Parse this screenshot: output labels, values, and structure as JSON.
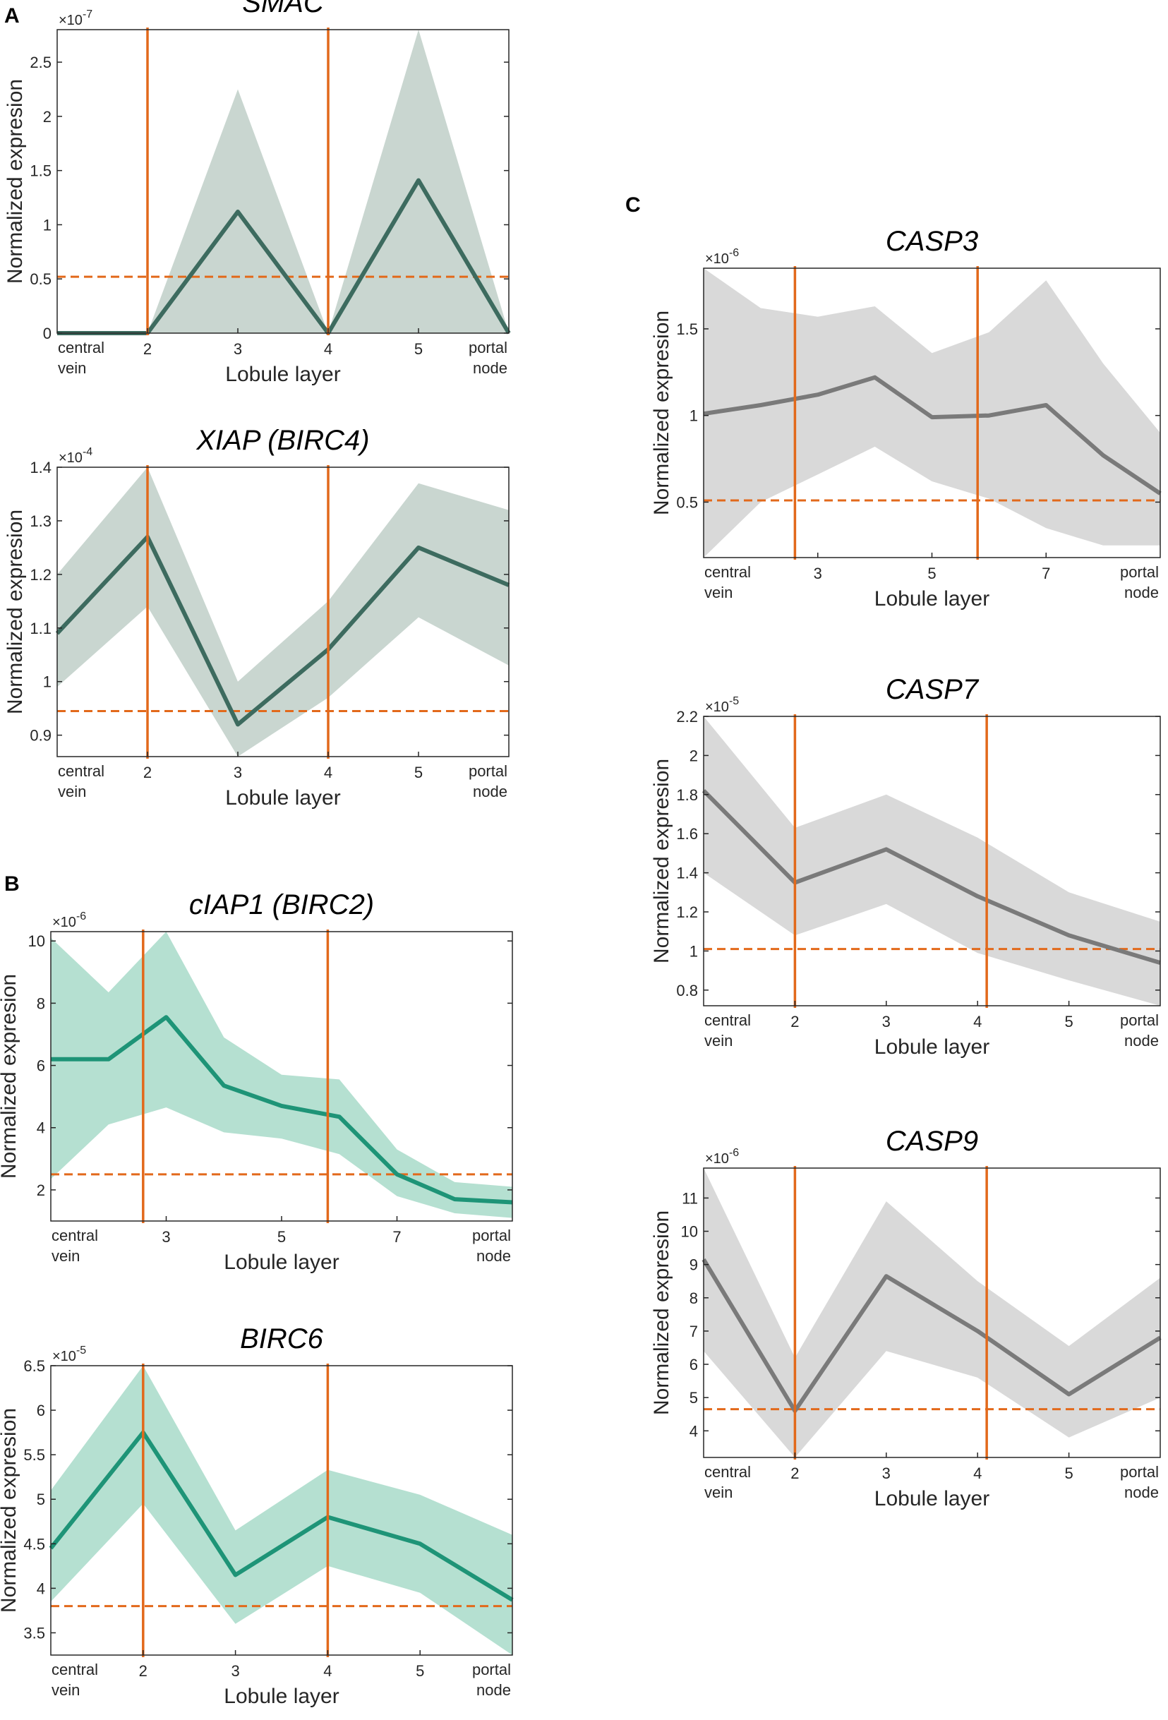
{
  "panels": {
    "A": "A",
    "B": "B",
    "C": "C"
  },
  "chart_data": [
    {
      "id": "smac",
      "type": "line",
      "panel": "A",
      "title": "SMAC",
      "xlabel": "Lobule layer",
      "ylabel": "Normalized expresion",
      "multiplier": "×10",
      "multiplier_exp": "-7",
      "xlim": [
        1,
        6
      ],
      "ylim": [
        0,
        2.8
      ],
      "yticks": [
        {
          "v": 0,
          "t": "0"
        },
        {
          "v": 0.5,
          "t": "0.5"
        },
        {
          "v": 1,
          "t": "1"
        },
        {
          "v": 1.5,
          "t": "1.5"
        },
        {
          "v": 2,
          "t": "2"
        },
        {
          "v": 2.5,
          "t": "2.5"
        }
      ],
      "xticks": [
        {
          "v": 2,
          "t": "2"
        },
        {
          "v": 3,
          "t": "3"
        },
        {
          "v": 4,
          "t": "4"
        },
        {
          "v": 5,
          "t": "5"
        }
      ],
      "x_left_label": [
        "central",
        "vein"
      ],
      "x_right_label": [
        "portal",
        "node"
      ],
      "x": [
        1,
        2,
        3,
        4,
        5,
        6
      ],
      "mean": [
        0,
        0,
        1.12,
        0,
        1.41,
        0
      ],
      "upper": [
        0,
        0,
        2.25,
        0,
        2.8,
        0
      ],
      "lower": [
        0,
        0,
        0,
        0,
        0,
        0
      ],
      "vlines": [
        2,
        4
      ],
      "threshold": 0.52,
      "line_color": "#3d6b5f",
      "band_color": "#c9d6d0"
    },
    {
      "id": "xiap",
      "type": "line",
      "panel": "A",
      "title": "XIAP (BIRC4)",
      "xlabel": "Lobule layer",
      "ylabel": "Normalized expresion",
      "multiplier": "×10",
      "multiplier_exp": "-4",
      "xlim": [
        1,
        6
      ],
      "ylim": [
        0.86,
        1.4
      ],
      "yticks": [
        {
          "v": 0.9,
          "t": "0.9"
        },
        {
          "v": 1,
          "t": "1"
        },
        {
          "v": 1.1,
          "t": "1.1"
        },
        {
          "v": 1.2,
          "t": "1.2"
        },
        {
          "v": 1.3,
          "t": "1.3"
        },
        {
          "v": 1.4,
          "t": "1.4"
        }
      ],
      "xticks": [
        {
          "v": 2,
          "t": "2"
        },
        {
          "v": 3,
          "t": "3"
        },
        {
          "v": 4,
          "t": "4"
        },
        {
          "v": 5,
          "t": "5"
        }
      ],
      "x_left_label": [
        "central",
        "vein"
      ],
      "x_right_label": [
        "portal",
        "node"
      ],
      "x": [
        1,
        2,
        3,
        4,
        5,
        6
      ],
      "mean": [
        1.09,
        1.27,
        0.92,
        1.06,
        1.25,
        1.18
      ],
      "upper": [
        1.2,
        1.4,
        1.0,
        1.15,
        1.37,
        1.32
      ],
      "lower": [
        0.99,
        1.14,
        0.86,
        0.97,
        1.12,
        1.03
      ],
      "vlines": [
        2,
        4
      ],
      "threshold": 0.945,
      "line_color": "#3d6b5f",
      "band_color": "#c9d6d0"
    },
    {
      "id": "ciap1",
      "type": "line",
      "panel": "B",
      "title": "cIAP1 (BIRC2)",
      "xlabel": "Lobule layer",
      "ylabel": "Normalized expresion",
      "multiplier": "×10",
      "multiplier_exp": "-6",
      "xlim": [
        1,
        9
      ],
      "ylim": [
        1,
        10.3
      ],
      "yticks": [
        {
          "v": 2,
          "t": "2"
        },
        {
          "v": 4,
          "t": "4"
        },
        {
          "v": 6,
          "t": "6"
        },
        {
          "v": 8,
          "t": "8"
        },
        {
          "v": 10,
          "t": "10"
        }
      ],
      "xticks": [
        {
          "v": 3,
          "t": "3"
        },
        {
          "v": 5,
          "t": "5"
        },
        {
          "v": 7,
          "t": "7"
        }
      ],
      "x_left_label": [
        "central",
        "vein"
      ],
      "x_right_label": [
        "portal",
        "node"
      ],
      "x": [
        1,
        2,
        3,
        4,
        5,
        6,
        7,
        8,
        9
      ],
      "mean": [
        6.2,
        6.2,
        7.55,
        5.35,
        4.7,
        4.35,
        2.5,
        1.7,
        1.6
      ],
      "upper": [
        10.1,
        8.35,
        10.3,
        6.9,
        5.7,
        5.55,
        3.3,
        2.25,
        2.1
      ],
      "lower": [
        2.35,
        4.1,
        4.65,
        3.85,
        3.65,
        3.15,
        1.8,
        1.25,
        1.1
      ],
      "vlines": [
        2.6,
        5.8
      ],
      "threshold": 2.5,
      "line_color": "#1e9477",
      "band_color": "#b5e0d1"
    },
    {
      "id": "birc6",
      "type": "line",
      "panel": "B",
      "title": "BIRC6",
      "xlabel": "Lobule layer",
      "ylabel": "Normalized expresion",
      "multiplier": "×10",
      "multiplier_exp": "-5",
      "xlim": [
        1,
        6
      ],
      "ylim": [
        3.25,
        6.5
      ],
      "yticks": [
        {
          "v": 3.5,
          "t": "3.5"
        },
        {
          "v": 4,
          "t": "4"
        },
        {
          "v": 4.5,
          "t": "4.5"
        },
        {
          "v": 5,
          "t": "5"
        },
        {
          "v": 5.5,
          "t": "5.5"
        },
        {
          "v": 6,
          "t": "6"
        },
        {
          "v": 6.5,
          "t": "6.5"
        }
      ],
      "xticks": [
        {
          "v": 2,
          "t": "2"
        },
        {
          "v": 3,
          "t": "3"
        },
        {
          "v": 4,
          "t": "4"
        },
        {
          "v": 5,
          "t": "5"
        }
      ],
      "x_left_label": [
        "central",
        "vein"
      ],
      "x_right_label": [
        "portal",
        "node"
      ],
      "x": [
        1,
        2,
        3,
        4,
        5,
        6
      ],
      "mean": [
        4.45,
        5.75,
        4.15,
        4.8,
        4.5,
        3.87
      ],
      "upper": [
        5.1,
        6.5,
        4.65,
        5.33,
        5.05,
        4.6
      ],
      "lower": [
        3.85,
        4.95,
        3.6,
        4.25,
        3.95,
        3.25
      ],
      "vlines": [
        2,
        4
      ],
      "threshold": 3.8,
      "line_color": "#1e9477",
      "band_color": "#b5e0d1"
    },
    {
      "id": "casp3",
      "type": "line",
      "panel": "C",
      "title": "CASP3",
      "xlabel": "Lobule layer",
      "ylabel": "Normalized expresion",
      "multiplier": "×10",
      "multiplier_exp": "-6",
      "xlim": [
        1,
        9
      ],
      "ylim": [
        0.18,
        1.85
      ],
      "yticks": [
        {
          "v": 0.5,
          "t": "0.5"
        },
        {
          "v": 1,
          "t": "1"
        },
        {
          "v": 1.5,
          "t": "1.5"
        }
      ],
      "xticks": [
        {
          "v": 3,
          "t": "3"
        },
        {
          "v": 5,
          "t": "5"
        },
        {
          "v": 7,
          "t": "7"
        }
      ],
      "x_left_label": [
        "central",
        "vein"
      ],
      "x_right_label": [
        "portal",
        "node"
      ],
      "x": [
        1,
        2,
        3,
        4,
        5,
        6,
        7,
        8,
        9
      ],
      "mean": [
        1.01,
        1.06,
        1.12,
        1.22,
        0.99,
        1.0,
        1.06,
        0.77,
        0.55
      ],
      "upper": [
        1.85,
        1.62,
        1.57,
        1.63,
        1.36,
        1.48,
        1.78,
        1.3,
        0.9
      ],
      "lower": [
        0.18,
        0.5,
        0.66,
        0.82,
        0.62,
        0.52,
        0.35,
        0.25,
        0.25
      ],
      "vlines": [
        2.6,
        5.8
      ],
      "threshold": 0.51,
      "line_color": "#7a7a7a",
      "band_color": "#d9d9d9"
    },
    {
      "id": "casp7",
      "type": "line",
      "panel": "C",
      "title": "CASP7",
      "xlabel": "Lobule layer",
      "ylabel": "Normalized expresion",
      "multiplier": "×10",
      "multiplier_exp": "-5",
      "xlim": [
        1,
        6
      ],
      "ylim": [
        0.72,
        2.2
      ],
      "yticks": [
        {
          "v": 0.8,
          "t": "0.8"
        },
        {
          "v": 1,
          "t": "1"
        },
        {
          "v": 1.2,
          "t": "1.2"
        },
        {
          "v": 1.4,
          "t": "1.4"
        },
        {
          "v": 1.6,
          "t": "1.6"
        },
        {
          "v": 1.8,
          "t": "1.8"
        },
        {
          "v": 2,
          "t": "2"
        },
        {
          "v": 2.2,
          "t": "2.2"
        }
      ],
      "xticks": [
        {
          "v": 2,
          "t": "2"
        },
        {
          "v": 3,
          "t": "3"
        },
        {
          "v": 4,
          "t": "4"
        },
        {
          "v": 5,
          "t": "5"
        }
      ],
      "x_left_label": [
        "central",
        "vein"
      ],
      "x_right_label": [
        "portal",
        "node"
      ],
      "x": [
        1,
        2,
        3,
        4,
        5,
        6
      ],
      "mean": [
        1.82,
        1.35,
        1.52,
        1.28,
        1.08,
        0.94
      ],
      "upper": [
        2.2,
        1.63,
        1.8,
        1.58,
        1.3,
        1.15
      ],
      "lower": [
        1.4,
        1.08,
        1.24,
        0.99,
        0.85,
        0.72
      ],
      "vlines": [
        2,
        4.1
      ],
      "threshold": 1.01,
      "line_color": "#7a7a7a",
      "band_color": "#d9d9d9"
    },
    {
      "id": "casp9",
      "type": "line",
      "panel": "C",
      "title": "CASP9",
      "xlabel": "Lobule layer",
      "ylabel": "Normalized expresion",
      "multiplier": "×10",
      "multiplier_exp": "-6",
      "xlim": [
        1,
        6
      ],
      "ylim": [
        3.2,
        11.9
      ],
      "yticks": [
        {
          "v": 4,
          "t": "4"
        },
        {
          "v": 5,
          "t": "5"
        },
        {
          "v": 6,
          "t": "6"
        },
        {
          "v": 7,
          "t": "7"
        },
        {
          "v": 8,
          "t": "8"
        },
        {
          "v": 9,
          "t": "9"
        },
        {
          "v": 10,
          "t": "10"
        },
        {
          "v": 11,
          "t": "11"
        }
      ],
      "xticks": [
        {
          "v": 2,
          "t": "2"
        },
        {
          "v": 3,
          "t": "3"
        },
        {
          "v": 4,
          "t": "4"
        },
        {
          "v": 5,
          "t": "5"
        }
      ],
      "x_left_label": [
        "central",
        "vein"
      ],
      "x_right_label": [
        "portal",
        "node"
      ],
      "x": [
        1,
        2,
        3,
        4,
        5,
        6
      ],
      "mean": [
        9.15,
        4.6,
        8.65,
        7.0,
        5.1,
        6.8
      ],
      "upper": [
        11.9,
        6.2,
        10.9,
        8.5,
        6.55,
        8.6
      ],
      "lower": [
        6.4,
        3.2,
        6.4,
        5.6,
        3.8,
        5.0
      ],
      "vlines": [
        2,
        4.1
      ],
      "threshold": 4.65,
      "line_color": "#7a7a7a",
      "band_color": "#d9d9d9"
    }
  ]
}
